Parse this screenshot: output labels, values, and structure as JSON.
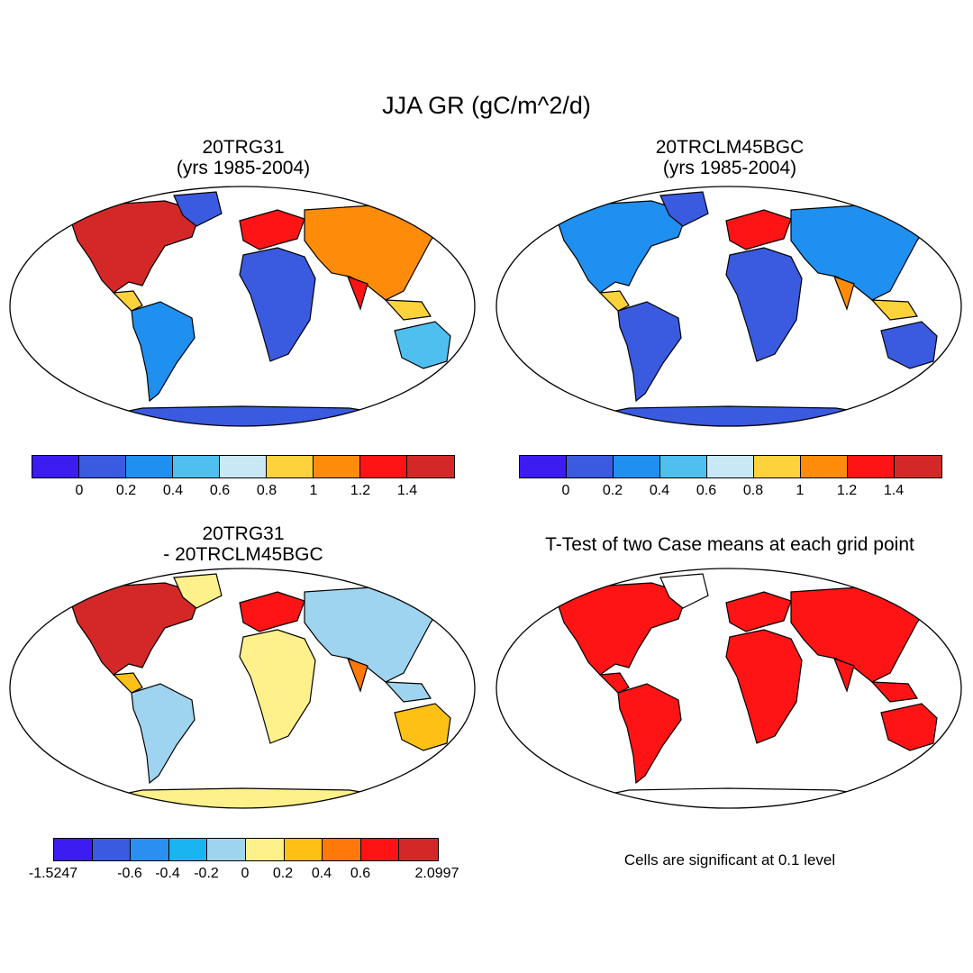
{
  "figure": {
    "title": "JJA GR (gC/m^2/d)"
  },
  "panels": [
    {
      "id": "case1",
      "title": "20TRG31\n(yrs 1985-2004)",
      "colorbar": {
        "colors": [
          "#3c1cf0",
          "#3a5ae0",
          "#1f8ff0",
          "#4fbff0",
          "#c8e8f5",
          "#fed23a",
          "#fe8c0a",
          "#fe1414",
          "#d42828"
        ],
        "tick_labels": [
          "0",
          "0.2",
          "0.4",
          "0.6",
          "0.8",
          "1",
          "1.2",
          "1.4"
        ]
      }
    },
    {
      "id": "case2",
      "title": "20TRCLM45BGC\n(yrs 1985-2004)",
      "colorbar": {
        "colors": [
          "#3c1cf0",
          "#3a5ae0",
          "#1f8ff0",
          "#4fbff0",
          "#c8e8f5",
          "#fed23a",
          "#fe8c0a",
          "#fe1414",
          "#d42828"
        ],
        "tick_labels": [
          "0",
          "0.2",
          "0.4",
          "0.6",
          "0.8",
          "1",
          "1.2",
          "1.4"
        ]
      }
    },
    {
      "id": "diff",
      "title": "20TRG31\n- 20TRCLM45BGC",
      "colorbar": {
        "colors": [
          "#3c1cf0",
          "#3a5ae0",
          "#2a8ff0",
          "#1ab4f0",
          "#9fd4f0",
          "#fef08a",
          "#fec014",
          "#fe780a",
          "#fe1414",
          "#d42828"
        ],
        "tick_labels": [
          "-1.5247",
          "-0.6",
          "-0.4",
          "-0.2",
          "0",
          "0.2",
          "0.4",
          "0.6",
          "2.0997"
        ]
      }
    },
    {
      "id": "ttest",
      "title": "T-Test of two Case means at each grid point",
      "note": "Cells are significant at 0.1 level",
      "significant_color": "#fe1414"
    }
  ]
}
